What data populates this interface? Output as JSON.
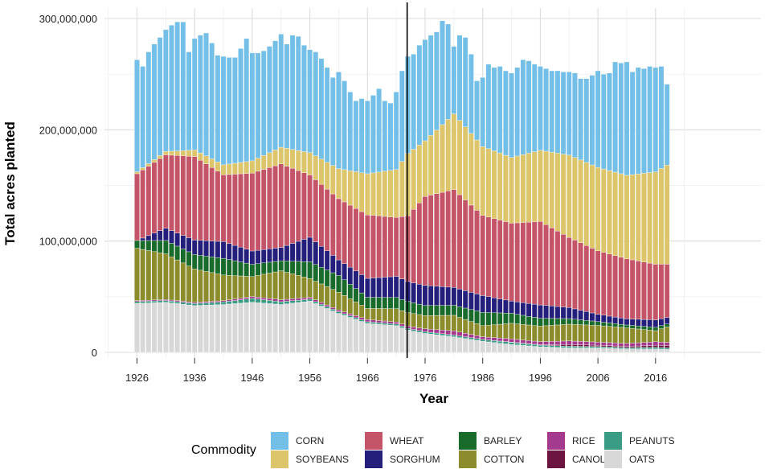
{
  "chart_data": {
    "type": "stacked-bar",
    "title": "",
    "xlabel": "Year",
    "ylabel": "Total acres planted",
    "ylim": [
      0,
      300000000
    ],
    "y_ticks": [
      0,
      100000000,
      200000000,
      300000000
    ],
    "y_tick_labels": [
      "0",
      "100,000,000",
      "200,000,000",
      "300,000,000"
    ],
    "x_ticks": [
      1926,
      1936,
      1946,
      1956,
      1966,
      1976,
      1986,
      1996,
      2006,
      2016
    ],
    "x_tick_labels": [
      "1926",
      "1936",
      "1946",
      "1956",
      "1966",
      "1976",
      "1986",
      "1996",
      "2006",
      "2016"
    ],
    "vertical_line_year": 1973,
    "years_start": 1926,
    "years_end": 2018,
    "legend_title": "Commodity",
    "legend_position": "bottom",
    "series_order_bottom_to_top": [
      "OATS",
      "PEANUTS",
      "CANOLA",
      "RICE",
      "COTTON",
      "BARLEY",
      "SORGHUM",
      "WHEAT",
      "SOYBEANS",
      "CORN"
    ],
    "legend_order": [
      "CORN",
      "SOYBEANS",
      "WHEAT",
      "SORGHUM",
      "BARLEY",
      "COTTON",
      "RICE",
      "CANOLA",
      "PEANUTS",
      "OATS"
    ],
    "colors": {
      "CORN": "#74bfe8",
      "SOYBEANS": "#dcc56a",
      "WHEAT": "#c45468",
      "SORGHUM": "#251f7c",
      "BARLEY": "#196b2b",
      "COTTON": "#8c8c2c",
      "RICE": "#a33a8e",
      "CANOLA": "#6d1541",
      "PEANUTS": "#3a9c84",
      "OATS": "#d8d8d8"
    },
    "key_values_millions": {
      "years": [
        1926,
        1931,
        1936,
        1941,
        1946,
        1951,
        1956,
        1961,
        1966,
        1971,
        1973,
        1976,
        1981,
        1986,
        1991,
        1996,
        2001,
        2006,
        2011,
        2016,
        2018
      ],
      "OATS": [
        44,
        45,
        42,
        43,
        45,
        43,
        46,
        35,
        26,
        24,
        20,
        17,
        14,
        10,
        7,
        5,
        4,
        4,
        3,
        3,
        2.7
      ],
      "PEANUTS": [
        1.6,
        1.6,
        1.9,
        2.3,
        3.5,
        2.5,
        1.8,
        1.5,
        1.5,
        1.5,
        1.5,
        1.6,
        1.5,
        1.6,
        2.0,
        1.5,
        1.5,
        1.2,
        1.2,
        1.6,
        1.4
      ],
      "CANOLA": [
        0,
        0,
        0,
        0,
        0,
        0,
        0,
        0,
        0,
        0,
        0,
        0,
        0,
        0,
        0.2,
        0.3,
        1.5,
        1.2,
        1.1,
        1.7,
        2.0
      ],
      "RICE": [
        0.9,
        0.9,
        1.0,
        1.2,
        1.6,
        1.8,
        1.6,
        1.6,
        2.0,
        1.8,
        2.2,
        2.5,
        3.8,
        2.4,
        2.9,
        2.8,
        3.3,
        2.8,
        2.7,
        3.2,
        2.9
      ],
      "COTTON": [
        47,
        41,
        30,
        23,
        18,
        26,
        17,
        16,
        10,
        12,
        12,
        12,
        14,
        10,
        14,
        14,
        15,
        15,
        14,
        10,
        14
      ],
      "BARLEY": [
        7,
        12,
        13,
        15,
        11,
        9,
        15,
        15,
        10,
        10,
        10,
        9,
        9,
        12,
        9,
        7,
        5,
        3.5,
        2.6,
        3.0,
        2.5
      ],
      "SORGHUM": [
        0,
        11,
        13,
        15,
        12,
        12,
        22,
        14,
        17,
        19,
        18,
        18,
        16,
        15,
        11,
        12,
        10,
        6.5,
        5.5,
        6.7,
        5.7
      ],
      "WHEAT": [
        60,
        66,
        75,
        60,
        70,
        75,
        56,
        55,
        57,
        53,
        59,
        80,
        88,
        72,
        70,
        75,
        63,
        57,
        54,
        50,
        48
      ],
      "SOYBEANS": [
        1.8,
        3,
        6,
        9,
        11,
        15,
        20,
        27,
        37,
        43,
        56,
        50,
        68,
        62,
        59,
        64,
        74,
        75,
        75,
        83,
        89
      ],
      "CORN": [
        101,
        110,
        100,
        96,
        90,
        85,
        78,
        65,
        58,
        72,
        72,
        84,
        84,
        76,
        76,
        79,
        76,
        78,
        92,
        94,
        89
      ]
    },
    "totals_millions": [
      263,
      257,
      270,
      277,
      283,
      290,
      294,
      297,
      297,
      270,
      282,
      285,
      287,
      278,
      267,
      266,
      265,
      265,
      273,
      282,
      269,
      269,
      271,
      275,
      280,
      286,
      277,
      285,
      284,
      276,
      272,
      270,
      264,
      256,
      247,
      252,
      244,
      234,
      226,
      228,
      226,
      231,
      237,
      226,
      224,
      234,
      253,
      266,
      268,
      276,
      281,
      285,
      288,
      298,
      295,
      275,
      285,
      283,
      268,
      244,
      247,
      259,
      256,
      257,
      253,
      251,
      256,
      263,
      262,
      259,
      257,
      255,
      253,
      253,
      252,
      252,
      251,
      246,
      246,
      249,
      253,
      250,
      251,
      261,
      260,
      261,
      252,
      256,
      255,
      257,
      256,
      257,
      241
    ]
  }
}
